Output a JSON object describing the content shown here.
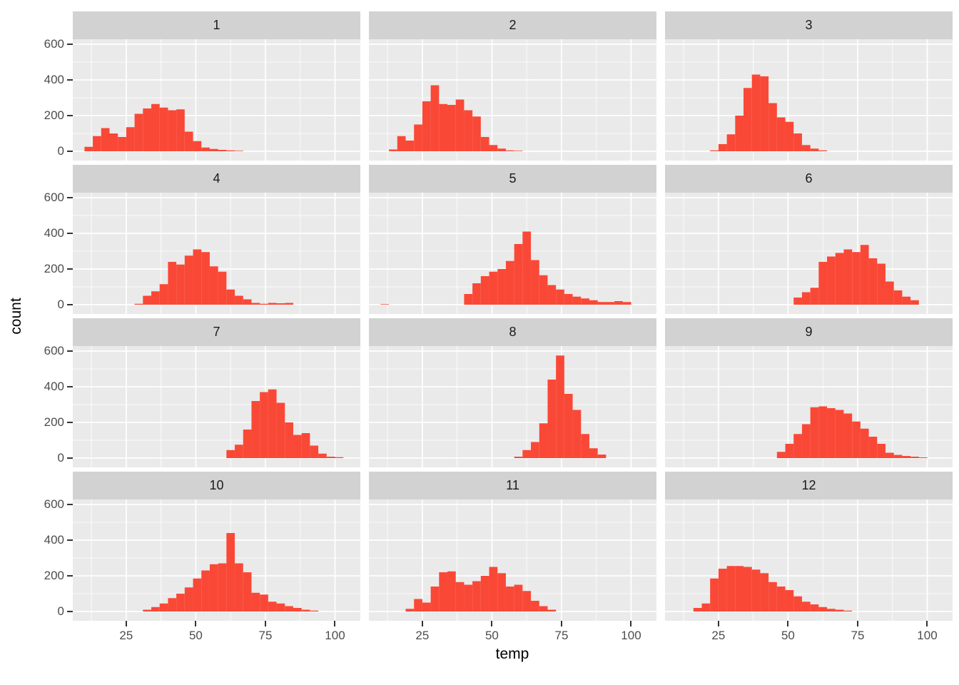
{
  "chart_data": {
    "type": "bar",
    "subtype": "faceted-histogram",
    "title": "",
    "xlabel": "temp",
    "ylabel": "count",
    "legend": "none",
    "grid": "on",
    "x_ticks": [
      25,
      50,
      75,
      100
    ],
    "x_tick_labels": [
      "25",
      "50",
      "75",
      "100"
    ],
    "y_ticks": [
      0,
      200,
      400,
      600
    ],
    "y_tick_labels": [
      "0",
      "200",
      "400",
      "600"
    ],
    "x_minor_gridlines": [
      12.5,
      37.5,
      62.5,
      87.5
    ],
    "y_minor_gridlines": [
      100,
      300,
      500
    ],
    "x_domain": [
      5.8,
      109.1
    ],
    "y_domain": [
      -52,
      628
    ],
    "bin_width": 3,
    "bar_color": "#FA4837",
    "panel_bg": "#EAEAEA",
    "strip_bg": "#D2D2D2",
    "gridline_color": "#FFFFFF",
    "axis_text_color": "#4D4D4D",
    "facets": [
      {
        "label": "1",
        "bin_start": 10,
        "counts": [
          25,
          85,
          130,
          100,
          80,
          135,
          210,
          240,
          265,
          245,
          230,
          235,
          110,
          57,
          21,
          13,
          8,
          5,
          3
        ]
      },
      {
        "label": "2",
        "bin_start": 13,
        "counts": [
          10,
          85,
          60,
          150,
          280,
          370,
          265,
          260,
          290,
          230,
          195,
          80,
          35,
          15,
          5,
          3
        ]
      },
      {
        "label": "3",
        "bin_start": 22,
        "counts": [
          5,
          40,
          95,
          200,
          355,
          430,
          420,
          270,
          190,
          165,
          100,
          35,
          15,
          5
        ]
      },
      {
        "label": "4",
        "bin_start": 28,
        "counts": [
          5,
          50,
          75,
          115,
          240,
          225,
          275,
          310,
          295,
          215,
          185,
          85,
          50,
          30,
          10,
          5,
          10,
          8,
          10
        ]
      },
      {
        "label": "5",
        "bin_start": 10,
        "counts": [
          3,
          0,
          0,
          0,
          0,
          0,
          0,
          0,
          0,
          0,
          60,
          120,
          160,
          185,
          200,
          245,
          340,
          410,
          250,
          165,
          110,
          85,
          60,
          45,
          35,
          25,
          15,
          15,
          20,
          15
        ]
      },
      {
        "label": "6",
        "bin_start": 52,
        "counts": [
          40,
          70,
          95,
          240,
          270,
          290,
          310,
          295,
          335,
          260,
          230,
          130,
          80,
          45,
          25
        ]
      },
      {
        "label": "7",
        "bin_start": 61,
        "counts": [
          45,
          75,
          160,
          320,
          370,
          385,
          310,
          200,
          130,
          140,
          70,
          25,
          8,
          5
        ]
      },
      {
        "label": "8",
        "bin_start": 58,
        "counts": [
          8,
          45,
          90,
          195,
          440,
          575,
          360,
          270,
          135,
          55,
          20
        ]
      },
      {
        "label": "9",
        "bin_start": 46,
        "counts": [
          35,
          80,
          135,
          190,
          285,
          290,
          280,
          270,
          250,
          205,
          165,
          120,
          80,
          30,
          18,
          12,
          8,
          4
        ]
      },
      {
        "label": "10",
        "bin_start": 31,
        "counts": [
          10,
          25,
          45,
          75,
          100,
          135,
          185,
          230,
          265,
          270,
          440,
          270,
          220,
          105,
          95,
          55,
          45,
          30,
          20,
          10,
          5
        ]
      },
      {
        "label": "11",
        "bin_start": 19,
        "counts": [
          15,
          70,
          50,
          140,
          220,
          225,
          165,
          150,
          170,
          200,
          250,
          215,
          140,
          150,
          115,
          60,
          30,
          10
        ]
      },
      {
        "label": "12",
        "bin_start": 16,
        "counts": [
          20,
          45,
          185,
          240,
          255,
          255,
          250,
          235,
          215,
          165,
          140,
          120,
          85,
          55,
          40,
          25,
          15,
          10,
          5
        ]
      }
    ]
  },
  "layout_labels": {
    "x_axis_title": "temp",
    "y_axis_title": "count"
  }
}
